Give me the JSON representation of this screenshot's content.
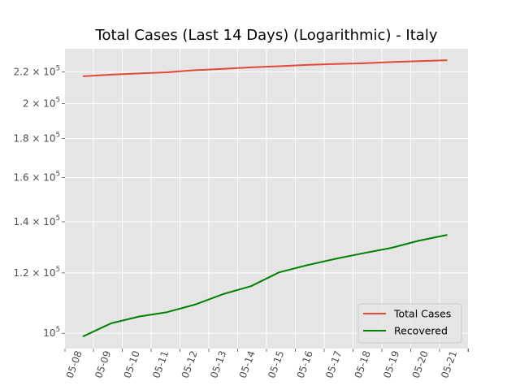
{
  "chart_data": {
    "type": "line",
    "title": "Total Cases (Last 14 Days) (Logarithmic) - Italy",
    "xlabel": "",
    "ylabel": "",
    "yscale": "log",
    "grid": true,
    "legend_position": "lower-right",
    "x_tick_labels": [
      "05-08",
      "05-09",
      "05-10",
      "05-11",
      "05-12",
      "05-13",
      "05-14",
      "05-15",
      "05-16",
      "05-17",
      "05-18",
      "05-19",
      "05-20",
      "05-21"
    ],
    "y_ticks": [
      {
        "value": 100000,
        "mantissa": "",
        "base": "10",
        "exp": "5"
      },
      {
        "value": 120000,
        "mantissa": "1.2",
        "base": "10",
        "exp": "5"
      },
      {
        "value": 140000,
        "mantissa": "1.4",
        "base": "10",
        "exp": "5"
      },
      {
        "value": 160000,
        "mantissa": "1.6",
        "base": "10",
        "exp": "5"
      },
      {
        "value": 180000,
        "mantissa": "1.8",
        "base": "10",
        "exp": "5"
      },
      {
        "value": 200000,
        "mantissa": "2",
        "base": "10",
        "exp": "5"
      },
      {
        "value": 220000,
        "mantissa": "2.2",
        "base": "10",
        "exp": "5"
      }
    ],
    "ylim": [
      95500,
      236000
    ],
    "x": [
      "05-08",
      "05-09",
      "05-10",
      "05-11",
      "05-12",
      "05-13",
      "05-14",
      "05-15",
      "05-16",
      "05-17",
      "05-18",
      "05-19",
      "05-20",
      "05-21"
    ],
    "series": [
      {
        "name": "Total Cases",
        "color": "#E24A33",
        "values": [
          217185,
          218268,
          219070,
          219814,
          221216,
          222104,
          223096,
          223885,
          224760,
          225435,
          225886,
          226699,
          227364,
          228006
        ]
      },
      {
        "name": "Recovered",
        "color": "#008000",
        "values": [
          99023,
          103031,
          105186,
          106587,
          109039,
          112541,
          115288,
          120205,
          122810,
          125176,
          127326,
          129401,
          132282,
          134560
        ]
      }
    ]
  }
}
